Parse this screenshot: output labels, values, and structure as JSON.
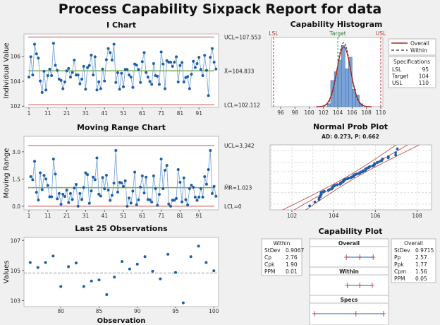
{
  "title": "Process Capability Sixpack Report for data",
  "chart_data": [
    {
      "id": "i_chart",
      "type": "line",
      "title": "I Chart",
      "ylabel": "Individual Value",
      "xlabel": "",
      "ylim": [
        101.9,
        107.8
      ],
      "yticks": [
        102,
        104,
        106
      ],
      "xticks": [
        1,
        11,
        21,
        31,
        41,
        51,
        61,
        71,
        81,
        91
      ],
      "ucl": 107.553,
      "center": 104.833,
      "lcl": 102.112,
      "ucl_label": "UCL=107.553",
      "center_label": "X̄=104.833",
      "lcl_label": "LCL=102.112",
      "values": [
        104.33,
        105.96,
        104.5,
        106.97,
        106.2,
        105.86,
        104.02,
        103.1,
        104.8,
        103.3,
        104.45,
        104.97,
        104.45,
        107.05,
        105.28,
        104.87,
        104.17,
        104.06,
        103.4,
        103.94,
        104.83,
        105.03,
        104.33,
        104.7,
        105.7,
        104.5,
        104.5,
        103.8,
        104.17,
        105.2,
        103.36,
        105.1,
        105.26,
        106.1,
        104.5,
        105.96,
        103.3,
        103.96,
        103.4,
        104.98,
        104.02,
        105.73,
        106.62,
        106.3,
        105.7,
        106.97,
        103.9,
        104.68,
        103.36,
        104.64,
        103.55,
        104.95,
        104.95,
        104.5,
        104.33,
        103.5,
        105.38,
        105.3,
        104.95,
        103.9,
        105.57,
        106.3,
        104.7,
        104.33,
        103.98,
        103.75,
        105.42,
        104.45,
        104.4,
        103.75,
        106.35,
        105.38,
        103.4,
        105.65,
        105.53,
        105.53,
        105.2,
        105.53,
        105.96,
        103.94,
        105.26,
        105.5,
        103.94,
        104.3,
        104.37,
        103.4,
        104.56,
        105.6,
        105.1,
        105.42,
        105.92,
        104.95,
        104.45,
        106.08,
        104.87,
        102.85,
        105.92,
        106.62,
        105.53,
        104.98
      ]
    },
    {
      "id": "moving_range",
      "type": "line",
      "title": "Moving Range Chart",
      "ylabel": "Moving Range",
      "ylim": [
        -0.2,
        3.85
      ],
      "yticks": [
        "0.0",
        "1.5",
        "3.0"
      ],
      "xticks": [
        1,
        11,
        21,
        31,
        41,
        51,
        61,
        71,
        81,
        91
      ],
      "ucl": 3.342,
      "center": 1.023,
      "lcl": 0,
      "ucl_label": "UCL=3.342",
      "center_label": "M̄R=1.023",
      "lcl_label": "LCL=0",
      "values_source": "absolute differences of consecutive I Chart values"
    },
    {
      "id": "last25",
      "type": "scatter",
      "title": "Last 25 Observations",
      "ylabel": "Values",
      "xlabel": "Observation",
      "ylim": [
        102.6,
        107.2
      ],
      "yticks": [
        103,
        105,
        107
      ],
      "xticks": [
        80,
        85,
        90,
        95,
        100
      ],
      "x_range": [
        76,
        100
      ],
      "center": 104.833
    },
    {
      "id": "capability_histogram",
      "type": "bar",
      "title": "Capability Histogram",
      "xlim": [
        94.5,
        110.8
      ],
      "xticks": [
        96,
        98,
        100,
        102,
        104,
        106,
        108,
        110
      ],
      "bin_width": 0.5,
      "lsl_label": "LSL",
      "target_label": "Target",
      "usl_label": "USL",
      "legend": {
        "position": "right",
        "overall": "Overall",
        "within": "Within"
      },
      "specifications": {
        "title": "Specifications",
        "rows": [
          [
            "LSL",
            "95"
          ],
          [
            "Target",
            "104"
          ],
          [
            "USL",
            "110"
          ]
        ]
      },
      "lsl": 95,
      "target": 104,
      "usl": 110,
      "mean": 104.833,
      "sd_overall": 0.9715,
      "sd_within": 0.9067,
      "colors": {
        "bars": "#7ba3d9",
        "overall": "#b22222",
        "within": "#555555",
        "spec": "#d62728",
        "target": "#2ca02c"
      }
    },
    {
      "id": "normal_prob_plot",
      "type": "scatter",
      "title": "Normal Prob Plot",
      "subtitle": "AD: 0.273, P: 0.662",
      "xlim": [
        101.1,
        108.7
      ],
      "xticks": [
        102,
        104,
        106,
        108
      ],
      "grid": true
    },
    {
      "id": "capability_plot",
      "type": "table",
      "title": "Capability Plot",
      "within": {
        "title": "Within",
        "rows": [
          [
            "StDev",
            "0.9067"
          ],
          [
            "Cp",
            "2.76"
          ],
          [
            "Cpk",
            "1.90"
          ],
          [
            "PPM",
            "0.01"
          ]
        ]
      },
      "overall": {
        "title": "Overall",
        "rows": [
          [
            "StDev",
            "0.9715"
          ],
          [
            "Pp",
            "2.57"
          ],
          [
            "Ppk",
            "1.77"
          ],
          [
            "Cpm",
            "1.56"
          ],
          [
            "PPM",
            "0.05"
          ]
        ]
      },
      "panels": [
        {
          "label": "Overall",
          "low": 101.92,
          "mid": 104.833,
          "high": 107.75
        },
        {
          "label": "Within",
          "low": 102.11,
          "mid": 104.833,
          "high": 107.55
        },
        {
          "label": "Specs",
          "low": 95,
          "mid": 104,
          "high": 110
        }
      ],
      "scale": [
        94,
        111
      ]
    }
  ]
}
